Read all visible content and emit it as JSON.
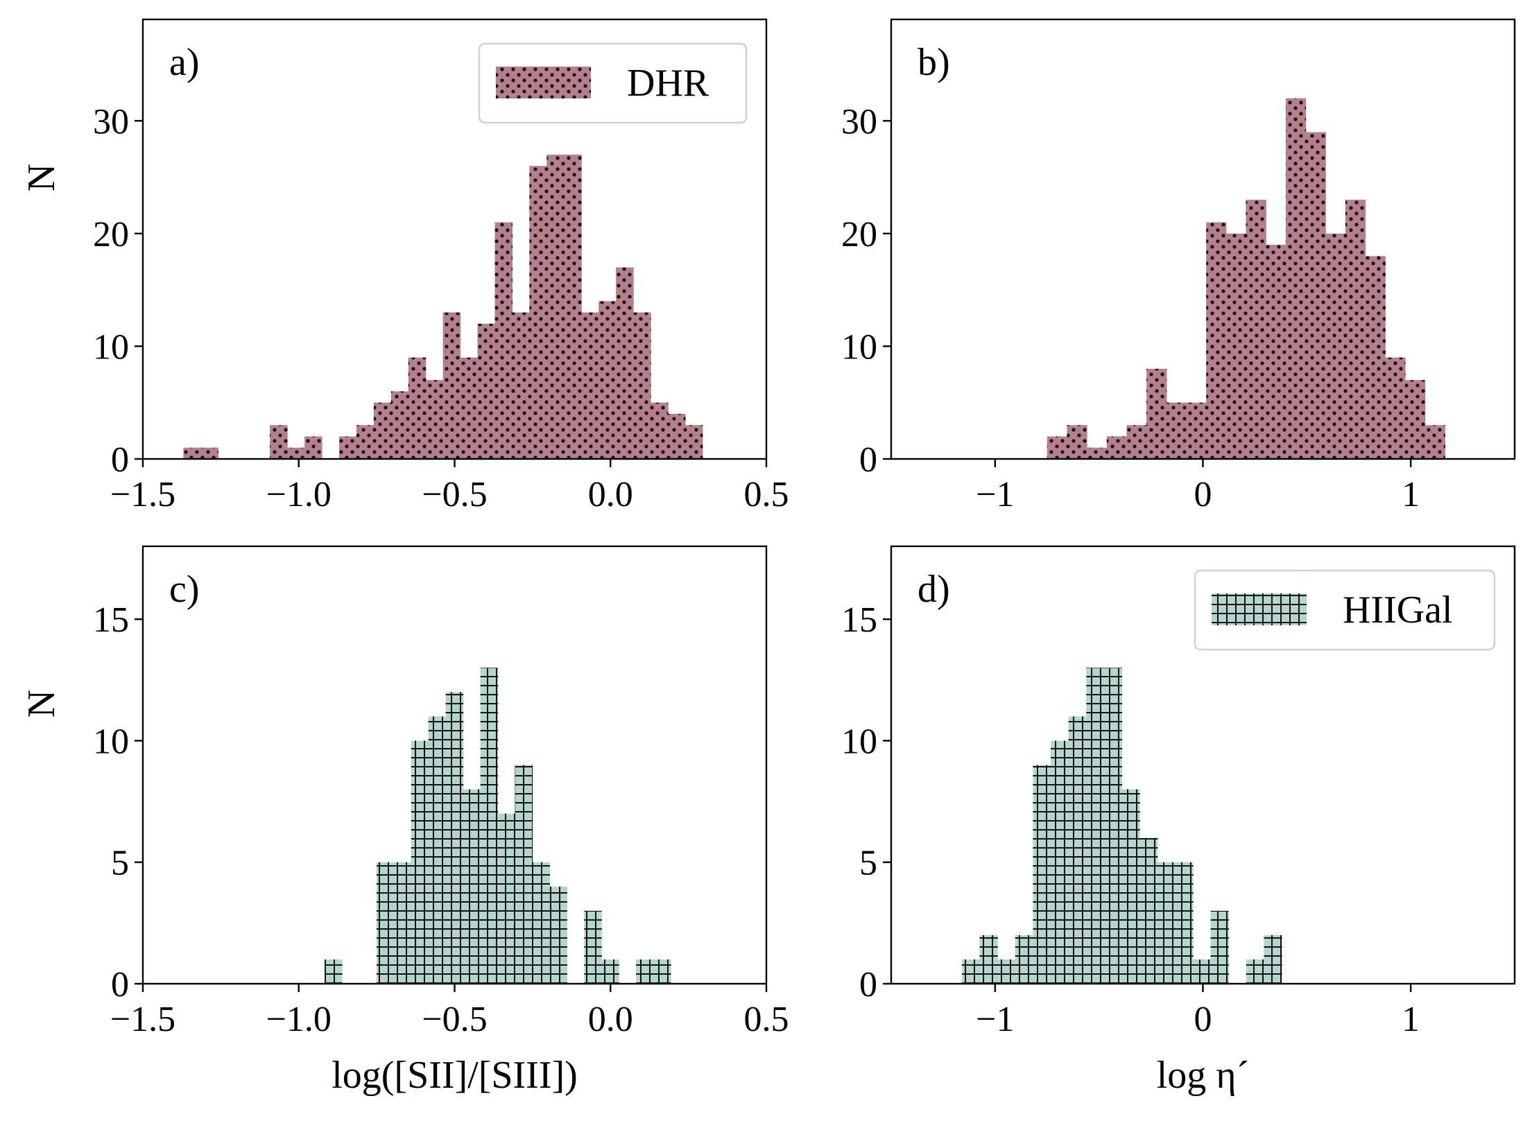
{
  "chart_data": [
    {
      "type": "bar",
      "panel": "a)",
      "legend": "DHR",
      "legend_location": "top-right",
      "xlabel": "",
      "ylabel": "N",
      "xlim": [
        -1.5,
        0.5
      ],
      "ylim": [
        0,
        39
      ],
      "xticks": [
        -1.5,
        -1.0,
        -0.5,
        0.0,
        0.5
      ],
      "xtick_labels": [
        "−1.5",
        "−1.0",
        "−0.5",
        "0.0",
        "0.5"
      ],
      "yticks": [
        0,
        10,
        20,
        30
      ],
      "ytick_labels": [
        "0",
        "10",
        "20",
        "30"
      ],
      "bin_start": -1.37,
      "bin_width": 0.0555,
      "counts": [
        1,
        1,
        0,
        0,
        0,
        3,
        1,
        2,
        0,
        2,
        3,
        5,
        6,
        9,
        7,
        13,
        9,
        12,
        21,
        13,
        26,
        27,
        27,
        13,
        14,
        17,
        13,
        5,
        4,
        3
      ],
      "hatch": "dots",
      "color": "#b57f8c"
    },
    {
      "type": "bar",
      "panel": "b)",
      "legend": "",
      "xlabel": "",
      "ylabel": "",
      "xlim": [
        -1.5,
        1.5
      ],
      "ylim": [
        0,
        39
      ],
      "xticks": [
        -1,
        0,
        1
      ],
      "xtick_labels": [
        "−1",
        "0",
        "1"
      ],
      "yticks": [
        0,
        10,
        20,
        30
      ],
      "ytick_labels": [
        "0",
        "10",
        "20",
        "30"
      ],
      "bin_start": -0.75,
      "bin_width": 0.0957,
      "counts": [
        2,
        3,
        1,
        2,
        3,
        8,
        5,
        5,
        21,
        20,
        23,
        19,
        32,
        29,
        20,
        23,
        18,
        9,
        7,
        3
      ],
      "hatch": "dots",
      "color": "#b57f8c"
    },
    {
      "type": "bar",
      "panel": "c)",
      "legend": "",
      "xlabel": "log([SII]/[SIII])",
      "ylabel": "N",
      "xlim": [
        -1.5,
        0.5
      ],
      "ylim": [
        0,
        18
      ],
      "xticks": [
        -1.5,
        -1.0,
        -0.5,
        0.0,
        0.5
      ],
      "xtick_labels": [
        "−1.5",
        "−1.0",
        "−0.5",
        "0.0",
        "0.5"
      ],
      "yticks": [
        0,
        5,
        10,
        15
      ],
      "ytick_labels": [
        "0",
        "5",
        "10",
        "15"
      ],
      "bin_start": -0.917,
      "bin_width": 0.0555,
      "counts": [
        1,
        0,
        0,
        5,
        5,
        10,
        11,
        12,
        8,
        13,
        7,
        9,
        5,
        4,
        0,
        3,
        1,
        0,
        1,
        1
      ],
      "hatch": "grid",
      "color": "#b5d6cf"
    },
    {
      "type": "bar",
      "panel": "d)",
      "legend": "HIIGal",
      "legend_location": "top-right",
      "xlabel": "log η´",
      "ylabel": "",
      "xlim": [
        -1.5,
        1.5
      ],
      "ylim": [
        0,
        18
      ],
      "xticks": [
        -1,
        0,
        1
      ],
      "xtick_labels": [
        "−1",
        "0",
        "1"
      ],
      "yticks": [
        0,
        5,
        10,
        15
      ],
      "ytick_labels": [
        "0",
        "5",
        "10",
        "15"
      ],
      "bin_start": -1.16,
      "bin_width": 0.0855,
      "counts": [
        1,
        2,
        1,
        2,
        9,
        10,
        11,
        13,
        13,
        8,
        6,
        5,
        5,
        1,
        3,
        0,
        1,
        2
      ],
      "hatch": "grid",
      "color": "#b5d6cf"
    }
  ]
}
